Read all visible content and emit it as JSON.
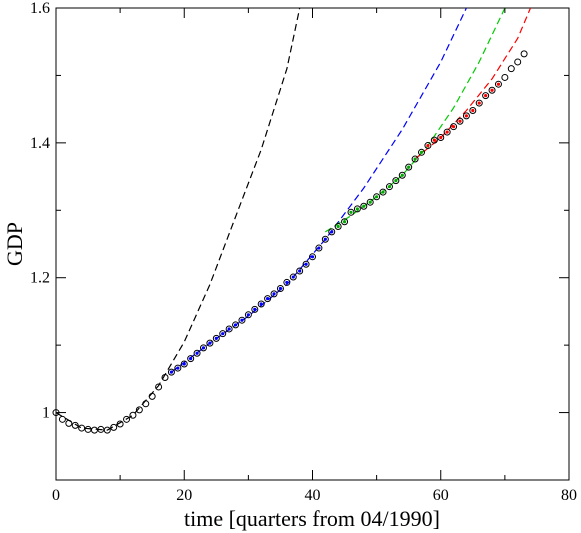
{
  "chart_data": {
    "type": "scatter",
    "title": "",
    "xlabel": "time [quarters from 04/1990]",
    "ylabel": "GDP",
    "xlim": [
      0,
      80
    ],
    "ylim": [
      0.9,
      1.6
    ],
    "x_ticks": [
      0,
      20,
      40,
      60,
      80
    ],
    "x_tick_labels": [
      "0",
      "20",
      "40",
      "60",
      "80"
    ],
    "y_ticks": [
      1.0,
      1.2,
      1.4,
      1.6
    ],
    "y_tick_labels": [
      "1",
      "1.2",
      "1.4",
      "1.6"
    ],
    "grid": false,
    "legend": "none",
    "points": {
      "marker": "open-circle",
      "x": [
        0,
        1,
        2,
        3,
        4,
        5,
        6,
        7,
        8,
        9,
        10,
        11,
        12,
        13,
        14,
        15,
        16,
        17,
        18,
        19,
        20,
        21,
        22,
        23,
        24,
        25,
        26,
        27,
        28,
        29,
        30,
        31,
        32,
        33,
        34,
        35,
        36,
        37,
        38,
        39,
        40,
        41,
        42,
        43,
        44,
        45,
        46,
        47,
        48,
        49,
        50,
        51,
        52,
        53,
        54,
        55,
        56,
        57,
        58,
        59,
        60,
        61,
        62,
        63,
        64,
        65,
        66,
        67,
        68,
        69,
        70,
        71,
        72,
        73
      ],
      "y": [
        1.0,
        0.99,
        0.984,
        0.981,
        0.977,
        0.975,
        0.974,
        0.975,
        0.974,
        0.978,
        0.983,
        0.99,
        0.996,
        1.004,
        1.013,
        1.024,
        1.038,
        1.052,
        1.06,
        1.066,
        1.072,
        1.08,
        1.088,
        1.096,
        1.103,
        1.11,
        1.117,
        1.124,
        1.13,
        1.137,
        1.145,
        1.153,
        1.161,
        1.169,
        1.176,
        1.184,
        1.193,
        1.201,
        1.21,
        1.22,
        1.231,
        1.244,
        1.257,
        1.268,
        1.276,
        1.283,
        1.297,
        1.302,
        1.306,
        1.312,
        1.32,
        1.327,
        1.335,
        1.344,
        1.352,
        1.364,
        1.376,
        1.386,
        1.396,
        1.404,
        1.408,
        1.416,
        1.424,
        1.432,
        1.44,
        1.448,
        1.459,
        1.47,
        1.478,
        1.487,
        1.497,
        1.51,
        1.52,
        1.532
      ],
      "colors": {
        "black": [
          0,
          17
        ],
        "blue": [
          18,
          43
        ],
        "green": [
          44,
          57
        ],
        "red": [
          58,
          69
        ]
      }
    },
    "fits": [
      {
        "color": "#000000",
        "x": [
          0,
          4,
          8,
          12,
          16,
          20,
          24,
          28,
          32,
          36,
          38
        ],
        "y": [
          1.0,
          0.977,
          0.974,
          0.996,
          1.04,
          1.105,
          1.19,
          1.29,
          1.39,
          1.51,
          1.6
        ]
      },
      {
        "color": "#0000ff",
        "x": [
          18,
          24,
          30,
          36,
          42,
          48,
          54,
          60,
          64
        ],
        "y": [
          1.06,
          1.103,
          1.143,
          1.19,
          1.257,
          1.333,
          1.42,
          1.52,
          1.6
        ]
      },
      {
        "color": "#00cc00",
        "x": [
          42,
          46,
          50,
          54,
          58,
          62,
          66,
          70
        ],
        "y": [
          1.268,
          1.292,
          1.32,
          1.352,
          1.396,
          1.452,
          1.52,
          1.6
        ]
      },
      {
        "color": "#ff0000",
        "x": [
          56,
          60,
          64,
          68,
          72,
          74
        ],
        "y": [
          1.376,
          1.408,
          1.448,
          1.495,
          1.555,
          1.6
        ]
      }
    ]
  }
}
